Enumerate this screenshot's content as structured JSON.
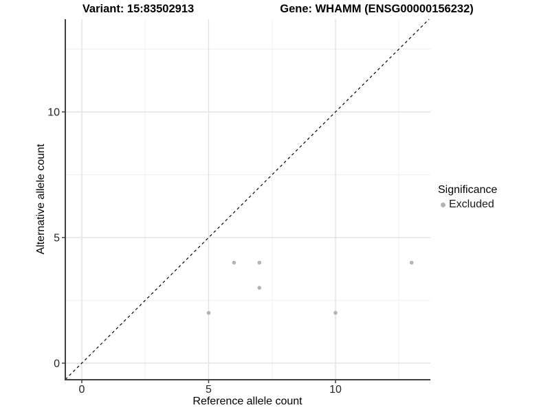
{
  "chart_data": {
    "type": "scatter",
    "title_left": "Variant: 15:83502913",
    "title_right": "Gene: WHAMM (ENSG00000156232)",
    "xlabel": "Reference allele count",
    "ylabel": "Alternative allele count",
    "xlim": [
      -0.65,
      13.74
    ],
    "ylim": [
      -0.66,
      13.69
    ],
    "x_ticks": [
      0,
      5,
      10
    ],
    "y_ticks": [
      0,
      5,
      10
    ],
    "x_minor_gridlines": [
      2.5,
      7.5,
      12.5
    ],
    "y_minor_gridlines": [
      2.5,
      7.5,
      12.5
    ],
    "grid": "major and minor gridlines on white panel",
    "legend_title": "Significance",
    "legend_position": "right",
    "series": [
      {
        "name": "Excluded",
        "color": "#b3b3b3",
        "marker": "circle",
        "points": [
          [
            5,
            2
          ],
          [
            6,
            4
          ],
          [
            7,
            4
          ],
          [
            7,
            3
          ],
          [
            10,
            2
          ],
          [
            13,
            4
          ]
        ]
      }
    ],
    "reference_line": {
      "kind": "identity y = x",
      "style": "dashed",
      "color": "#000000"
    }
  },
  "colors": {
    "background": "#ffffff",
    "axis_line": "#3f3f3f",
    "tick_label": "#262626",
    "grid_major": "#e2e2e2",
    "grid_minor": "#efefef",
    "point": "#b3b3b3"
  }
}
